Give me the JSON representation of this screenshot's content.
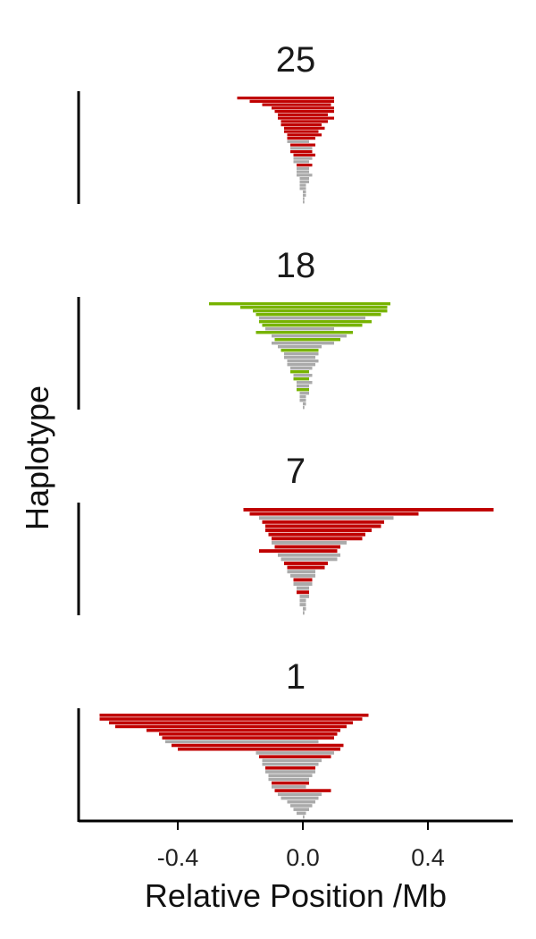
{
  "chart_data": {
    "type": "bar",
    "orientation": "horizontal",
    "xlabel": "Relative Position /Mb",
    "ylabel": "Haplotype",
    "x_range": [
      -0.65,
      0.67
    ],
    "x_ticks": [
      -0.4,
      0.0,
      0.4
    ],
    "x_tick_labels": [
      "-0.4",
      "0.0",
      "0.4"
    ],
    "colors": {
      "carrier": "#c00000",
      "other": "#aaaaaa",
      "carrier_alt": "#77b300",
      "axis": "#000000"
    },
    "panels": [
      {
        "title": "25",
        "carrier_color": "#c00000",
        "bars": [
          [
            -0.21,
            0.1,
            "c"
          ],
          [
            -0.17,
            0.1,
            "c"
          ],
          [
            -0.13,
            0.09,
            "c"
          ],
          [
            -0.1,
            0.1,
            "c"
          ],
          [
            -0.09,
            0.1,
            "c"
          ],
          [
            -0.08,
            0.08,
            "c"
          ],
          [
            -0.08,
            0.1,
            "c"
          ],
          [
            -0.07,
            0.08,
            "c"
          ],
          [
            -0.07,
            0.06,
            "c"
          ],
          [
            -0.06,
            0.07,
            "c"
          ],
          [
            -0.06,
            0.05,
            "c"
          ],
          [
            -0.05,
            0.06,
            "c"
          ],
          [
            -0.05,
            0.04,
            "c"
          ],
          [
            -0.05,
            0.02,
            "o"
          ],
          [
            -0.04,
            0.04,
            "c"
          ],
          [
            -0.04,
            0.03,
            "o"
          ],
          [
            -0.04,
            0.03,
            "c"
          ],
          [
            -0.03,
            0.04,
            "c"
          ],
          [
            -0.03,
            0.03,
            "o"
          ],
          [
            -0.03,
            0.02,
            "o"
          ],
          [
            -0.02,
            0.03,
            "c"
          ],
          [
            -0.02,
            0.02,
            "o"
          ],
          [
            -0.02,
            0.02,
            "o"
          ],
          [
            -0.02,
            0.03,
            "o"
          ],
          [
            -0.01,
            0.02,
            "o"
          ],
          [
            -0.01,
            0.02,
            "o"
          ],
          [
            -0.01,
            0.01,
            "o"
          ],
          [
            -0.01,
            0.01,
            "o"
          ],
          [
            0.0,
            0.01,
            "o"
          ],
          [
            0.0,
            0.01,
            "o"
          ],
          [
            0.0,
            0.005,
            "o"
          ],
          [
            0.0,
            0.005,
            "o"
          ]
        ]
      },
      {
        "title": "18",
        "carrier_color": "#77b300",
        "bars": [
          [
            -0.3,
            0.28,
            "c"
          ],
          [
            -0.2,
            0.27,
            "c"
          ],
          [
            -0.16,
            0.27,
            "c"
          ],
          [
            -0.15,
            0.25,
            "c"
          ],
          [
            -0.14,
            0.2,
            "o"
          ],
          [
            -0.14,
            0.22,
            "c"
          ],
          [
            -0.13,
            0.19,
            "c"
          ],
          [
            -0.12,
            0.1,
            "o"
          ],
          [
            -0.15,
            0.16,
            "c"
          ],
          [
            -0.1,
            0.14,
            "o"
          ],
          [
            -0.09,
            0.12,
            "c"
          ],
          [
            -0.1,
            0.1,
            "o"
          ],
          [
            -0.08,
            0.06,
            "o"
          ],
          [
            -0.07,
            0.05,
            "c"
          ],
          [
            -0.06,
            0.05,
            "o"
          ],
          [
            -0.06,
            0.04,
            "o"
          ],
          [
            -0.05,
            0.05,
            "o"
          ],
          [
            -0.05,
            0.04,
            "o"
          ],
          [
            -0.04,
            0.03,
            "o"
          ],
          [
            -0.04,
            0.02,
            "c"
          ],
          [
            -0.03,
            0.03,
            "o"
          ],
          [
            -0.03,
            0.02,
            "c"
          ],
          [
            -0.02,
            0.03,
            "o"
          ],
          [
            -0.02,
            0.02,
            "o"
          ],
          [
            -0.02,
            0.02,
            "c"
          ],
          [
            -0.01,
            0.02,
            "o"
          ],
          [
            -0.01,
            0.01,
            "o"
          ],
          [
            -0.01,
            0.01,
            "o"
          ],
          [
            0.0,
            0.01,
            "o"
          ],
          [
            0.0,
            0.005,
            "o"
          ]
        ]
      },
      {
        "title": "7",
        "carrier_color": "#c00000",
        "bars": [
          [
            -0.19,
            0.61,
            "c"
          ],
          [
            -0.17,
            0.37,
            "c"
          ],
          [
            -0.14,
            0.29,
            "o"
          ],
          [
            -0.13,
            0.26,
            "c"
          ],
          [
            -0.12,
            0.25,
            "c"
          ],
          [
            -0.12,
            0.22,
            "c"
          ],
          [
            -0.11,
            0.2,
            "c"
          ],
          [
            -0.1,
            0.19,
            "c"
          ],
          [
            -0.1,
            0.14,
            "o"
          ],
          [
            -0.09,
            0.12,
            "c"
          ],
          [
            -0.14,
            0.11,
            "c"
          ],
          [
            -0.08,
            0.12,
            "o"
          ],
          [
            -0.07,
            0.11,
            "o"
          ],
          [
            -0.06,
            0.08,
            "c"
          ],
          [
            -0.05,
            0.07,
            "c"
          ],
          [
            -0.05,
            0.04,
            "o"
          ],
          [
            -0.04,
            0.04,
            "o"
          ],
          [
            -0.03,
            0.03,
            "c"
          ],
          [
            -0.03,
            0.03,
            "o"
          ],
          [
            -0.02,
            0.02,
            "o"
          ],
          [
            -0.02,
            0.02,
            "c"
          ],
          [
            -0.01,
            0.02,
            "o"
          ],
          [
            -0.01,
            0.01,
            "o"
          ],
          [
            -0.01,
            0.01,
            "o"
          ],
          [
            0.0,
            0.01,
            "o"
          ],
          [
            0.0,
            0.005,
            "o"
          ]
        ]
      },
      {
        "title": "1",
        "carrier_color": "#c00000",
        "bars": [
          [
            -0.65,
            0.21,
            "c"
          ],
          [
            -0.65,
            0.19,
            "c"
          ],
          [
            -0.62,
            0.16,
            "c"
          ],
          [
            -0.6,
            0.14,
            "c"
          ],
          [
            -0.5,
            0.12,
            "c"
          ],
          [
            -0.46,
            0.11,
            "c"
          ],
          [
            -0.45,
            0.1,
            "c"
          ],
          [
            -0.44,
            0.05,
            "o"
          ],
          [
            -0.42,
            0.13,
            "c"
          ],
          [
            -0.4,
            0.12,
            "c"
          ],
          [
            -0.15,
            0.1,
            "o"
          ],
          [
            -0.14,
            0.09,
            "c"
          ],
          [
            -0.13,
            0.06,
            "o"
          ],
          [
            -0.13,
            0.05,
            "o"
          ],
          [
            -0.12,
            0.04,
            "c"
          ],
          [
            -0.12,
            0.04,
            "o"
          ],
          [
            -0.11,
            0.03,
            "o"
          ],
          [
            -0.11,
            0.02,
            "o"
          ],
          [
            -0.1,
            0.02,
            "c"
          ],
          [
            -0.1,
            0.01,
            "o"
          ],
          [
            -0.09,
            0.09,
            "c"
          ],
          [
            -0.08,
            0.06,
            "o"
          ],
          [
            -0.07,
            0.05,
            "o"
          ],
          [
            -0.05,
            0.04,
            "o"
          ],
          [
            -0.04,
            0.03,
            "o"
          ],
          [
            -0.03,
            0.02,
            "o"
          ],
          [
            -0.02,
            0.01,
            "o"
          ],
          [
            0.0,
            0.005,
            "o"
          ]
        ]
      }
    ]
  }
}
